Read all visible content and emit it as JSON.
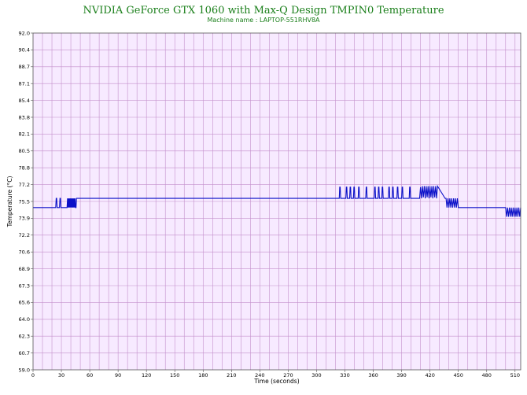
{
  "chart_data": {
    "type": "line",
    "title": "NVIDIA GeForce GTX 1060 with Max-Q Design TMPIN0 Temperature",
    "subtitle": "Machine name : LAPTOP-551RHV8A",
    "xlabel": "Time (seconds)",
    "ylabel": "Temperature (°C)",
    "xlim": [
      0,
      516
    ],
    "ylim": [
      59.0,
      92.0
    ],
    "grid": true,
    "x_ticks": [
      "0",
      "30",
      "60",
      "90",
      "120",
      "150",
      "180",
      "210",
      "240",
      "270",
      "300",
      "330",
      "360",
      "390",
      "420",
      "450",
      "480",
      "510"
    ],
    "y_ticks": [
      "92.0",
      "90.4",
      "88.7",
      "87.1",
      "85.4",
      "83.8",
      "82.1",
      "80.5",
      "78.8",
      "77.2",
      "75.5",
      "73.9",
      "72.2",
      "70.6",
      "68.9",
      "67.3",
      "65.6",
      "64.0",
      "62.3",
      "60.7",
      "59.0"
    ],
    "series": [
      {
        "x": [
          0,
          24,
          24.5,
          25,
          25.5,
          26,
          28,
          28.5,
          29,
          29.5,
          30,
          36,
          36.5,
          37,
          37.5,
          38,
          38.5,
          39,
          39.5,
          40,
          40.5,
          41,
          41.5,
          42,
          42.5,
          43,
          43.5,
          44,
          44.5,
          45,
          45.5,
          46,
          46.5,
          47,
          47.5,
          48,
          48.5,
          49,
          324,
          324.5,
          325,
          325.5,
          326,
          331,
          331.5,
          332,
          332.5,
          333,
          335,
          335.5,
          336,
          336.5,
          337,
          339,
          339.5,
          340,
          340.5,
          341,
          344,
          344.5,
          345,
          345.5,
          346,
          352,
          352.5,
          353,
          353.5,
          354,
          361,
          361.5,
          362,
          362.5,
          363,
          365,
          365.5,
          366,
          366.5,
          367,
          369,
          369.5,
          370,
          370.5,
          371,
          376,
          376.5,
          377,
          377.5,
          378,
          380,
          380.5,
          381,
          381.5,
          382,
          385,
          385.5,
          386,
          386.5,
          387,
          390,
          390.5,
          391,
          391.5,
          392,
          398,
          398.5,
          399,
          399.5,
          400,
          409,
          410,
          411,
          412,
          413,
          414,
          415,
          416,
          417,
          418,
          419,
          420,
          421,
          422,
          423,
          424,
          425,
          426,
          427,
          428,
          436,
          437,
          438,
          439,
          440,
          441,
          442,
          443,
          444,
          445,
          446,
          447,
          448,
          449,
          450,
          451,
          499,
          500,
          501,
          502,
          503,
          504,
          505,
          506,
          507,
          508,
          509,
          510,
          511,
          512,
          513,
          514,
          515,
          516
        ],
        "y": [
          74.9,
          74.9,
          75.8,
          75.8,
          74.9,
          74.9,
          74.9,
          75.8,
          75.8,
          74.9,
          74.9,
          74.9,
          75.8,
          74.9,
          75.8,
          74.9,
          75.8,
          74.9,
          75.8,
          74.9,
          75.8,
          74.9,
          75.8,
          74.9,
          75.8,
          74.9,
          75.8,
          74.9,
          75.8,
          74.9,
          74.9,
          75.8,
          75.8,
          75.8,
          75.8,
          75.8,
          75.8,
          75.8,
          75.8,
          76.9,
          76.9,
          75.8,
          75.8,
          75.8,
          76.9,
          76.9,
          75.8,
          75.8,
          75.8,
          76.9,
          76.9,
          75.8,
          75.8,
          75.8,
          76.9,
          76.9,
          75.8,
          75.8,
          75.8,
          76.9,
          76.9,
          75.8,
          75.8,
          75.8,
          76.9,
          76.9,
          75.8,
          75.8,
          75.8,
          76.9,
          76.9,
          75.8,
          75.8,
          75.8,
          76.9,
          76.9,
          75.8,
          75.8,
          75.8,
          76.9,
          76.9,
          75.8,
          75.8,
          75.8,
          76.9,
          76.9,
          75.8,
          75.8,
          75.8,
          76.9,
          76.9,
          75.8,
          75.8,
          75.8,
          76.9,
          76.9,
          75.8,
          75.8,
          75.8,
          76.9,
          76.9,
          75.8,
          75.8,
          75.8,
          76.9,
          76.9,
          75.8,
          75.8,
          75.8,
          76.9,
          75.8,
          77.0,
          75.9,
          77.0,
          75.8,
          77.0,
          75.9,
          77.0,
          75.8,
          77.0,
          75.9,
          77.0,
          75.8,
          77.0,
          75.9,
          77.0,
          75.8,
          77.0,
          75.8,
          75.8,
          74.9,
          75.8,
          74.9,
          75.8,
          74.9,
          75.8,
          74.9,
          75.8,
          74.9,
          75.8,
          74.9,
          75.8,
          74.9,
          74.9,
          74.9,
          74.9,
          74.0,
          74.9,
          74.0,
          74.9,
          74.0,
          74.9,
          74.0,
          74.9,
          74.0,
          74.9,
          74.0,
          74.9,
          74.0,
          74.9,
          74.0,
          74.9
        ]
      }
    ]
  },
  "colors": {
    "plot_background": "#f7eaff",
    "grid": "#c490cc",
    "line": "#0a10c8",
    "title": "#1a7f1a"
  }
}
